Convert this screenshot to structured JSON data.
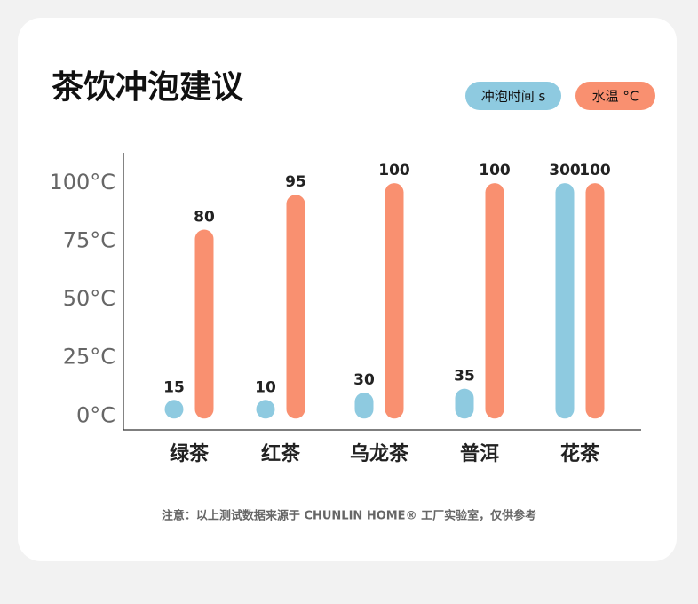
{
  "chart_data": {
    "type": "bar",
    "title": "茶饮冲泡建议",
    "categories": [
      "绿茶",
      "红茶",
      "乌龙茶",
      "普洱",
      "花茶"
    ],
    "series": [
      {
        "name": "冲泡时间 s",
        "color": "#8ecae0",
        "values": [
          15,
          10,
          30,
          35,
          300
        ],
        "axis": "y2"
      },
      {
        "name": "水温 °C",
        "color": "#f99070",
        "values": [
          80,
          95,
          100,
          100,
          100
        ]
      }
    ],
    "ylim": [
      -6,
      113
    ],
    "yticks": [
      {
        "value": 0,
        "label": "0°C"
      },
      {
        "value": 25,
        "label": "25°C"
      },
      {
        "value": 50,
        "label": "50°C"
      },
      {
        "value": 75,
        "label": "75°C"
      },
      {
        "value": 100,
        "label": "100°C"
      }
    ],
    "y2lim": [
      -18,
      339
    ],
    "note": "注意：以上测试数据来源于 CHUNLIN HOME® 工厂实验室，仅供参考"
  }
}
